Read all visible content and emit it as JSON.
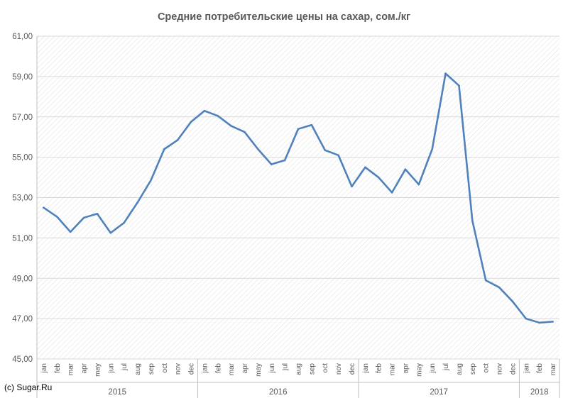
{
  "chart_data": {
    "type": "line",
    "title": "Средние потребительские цены на сахар, сом./кг",
    "xlabel": "",
    "ylabel": "",
    "ylim": [
      45,
      61
    ],
    "yticks": [
      "45,00",
      "47,00",
      "49,00",
      "51,00",
      "53,00",
      "55,00",
      "57,00",
      "59,00",
      "61,00"
    ],
    "grid": "horizontal lines, hatched plot area",
    "legend": "none",
    "colors": {
      "line": "#4F81BD",
      "grid": "#D9D9D9",
      "axis": "#BFBFBF",
      "text": "#595959"
    },
    "categories": [
      "jan",
      "feb",
      "mar",
      "apr",
      "may",
      "jun",
      "jul",
      "aug",
      "sep",
      "oct",
      "nov",
      "dec",
      "jan",
      "feb",
      "mar",
      "apr",
      "may",
      "jun",
      "jul",
      "aug",
      "sep",
      "oct",
      "nov",
      "dec",
      "jan",
      "feb",
      "mar",
      "apr",
      "may",
      "jun",
      "jul",
      "aug",
      "sep",
      "oct",
      "nov",
      "dec",
      "jan",
      "feb",
      "mar"
    ],
    "groups": [
      {
        "label": "2015",
        "count": 12
      },
      {
        "label": "2016",
        "count": 12
      },
      {
        "label": "2017",
        "count": 12
      },
      {
        "label": "2018",
        "count": 3
      }
    ],
    "values": [
      52.5,
      52.05,
      51.3,
      52.0,
      52.2,
      51.25,
      51.75,
      52.75,
      53.85,
      55.4,
      55.85,
      56.75,
      57.3,
      57.05,
      56.55,
      56.25,
      55.4,
      54.65,
      54.85,
      56.4,
      56.6,
      55.35,
      55.1,
      53.55,
      54.5,
      54.0,
      53.25,
      54.4,
      53.65,
      55.4,
      59.15,
      58.55,
      51.85,
      48.9,
      48.55,
      47.85,
      47.0,
      46.8,
      46.85
    ]
  },
  "credit": "(c) Sugar.Ru"
}
